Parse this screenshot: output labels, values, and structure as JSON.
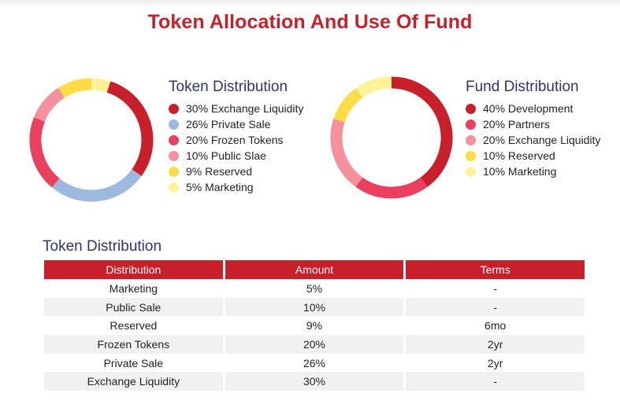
{
  "page": {
    "title": "Token Allocation And Use Of Fund"
  },
  "colors": {
    "title_red": "#c8202a",
    "heading_navy": "#2f3470",
    "table_header_bg": "#c8202a",
    "row_shade": "#f1f1f1"
  },
  "chart_data": [
    {
      "type": "pie",
      "donut": true,
      "title": "Token Distribution",
      "slices": [
        {
          "label": "30% Exchange Liquidity",
          "value": 30,
          "color": "#c8202a"
        },
        {
          "label": "26% Private Sale",
          "value": 26,
          "color": "#9db9e0"
        },
        {
          "label": "20% Frozen Tokens",
          "value": 20,
          "color": "#e8405e"
        },
        {
          "label": "10% Public Slae",
          "value": 10,
          "color": "#f4919c"
        },
        {
          "label": "9% Reserved",
          "value": 9,
          "color": "#fbdc46"
        },
        {
          "label": "5% Marketing",
          "value": 5,
          "color": "#fdf29a"
        }
      ],
      "legend_position": "right"
    },
    {
      "type": "pie",
      "donut": true,
      "title": "Fund Distribution",
      "slices": [
        {
          "label": "40% Development",
          "value": 40,
          "color": "#c8202a"
        },
        {
          "label": "20% Partners",
          "value": 20,
          "color": "#e8405e"
        },
        {
          "label": "20% Exchange Liquidity",
          "value": 20,
          "color": "#f4919c"
        },
        {
          "label": "10% Reserved",
          "value": 10,
          "color": "#fbdc46"
        },
        {
          "label": "10% Marketing",
          "value": 10,
          "color": "#fdf29a"
        }
      ],
      "legend_position": "right"
    }
  ],
  "table": {
    "title": "Token Distribution",
    "columns": [
      "Distribution",
      "Amount",
      "Terms"
    ],
    "rows": [
      [
        "Marketing",
        "5%",
        "-"
      ],
      [
        "Public Sale",
        "10%",
        "-"
      ],
      [
        "Reserved",
        "9%",
        "6mo"
      ],
      [
        "Frozen Tokens",
        "20%",
        "2yr"
      ],
      [
        "Private Sale",
        "26%",
        "2yr"
      ],
      [
        "Exchange Liquidity",
        "30%",
        "-"
      ]
    ]
  }
}
